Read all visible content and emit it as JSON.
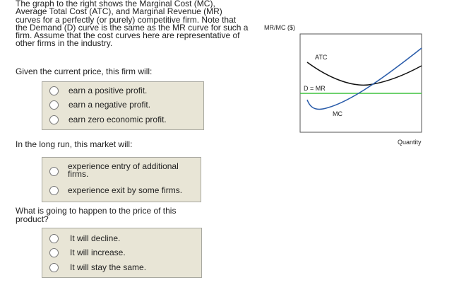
{
  "intro": [
    "The graph to the right shows the Marginal Cost (MC),",
    "Average Total Cost (ATC), and Marginal Revenue (MR)",
    "curves for a perfectly (or purely) competitive firm. Note that",
    "the Demand (D) curve is the same as the MR curve for such a",
    "firm. Assume that the cost curves here are representative of",
    "other firms in the industry."
  ],
  "questions": [
    {
      "prompt": "Given the current price, this firm will:",
      "options": [
        "earn a positive profit.",
        "earn a negative profit.",
        "earn zero economic profit."
      ]
    },
    {
      "prompt": "In the long run, this market will:",
      "options": [
        "experience entry of additional firms.",
        "experience exit by some firms."
      ]
    },
    {
      "prompt": "What is going to happen to the price of this product?",
      "options": [
        "It will decline.",
        "It will increase.",
        "It will stay the same."
      ]
    }
  ],
  "graph": {
    "y_label": "MR/MC ($)",
    "x_label": "Quantity",
    "atc_label": "ATC",
    "dmr_label": "D = MR",
    "mc_label": "MC"
  }
}
